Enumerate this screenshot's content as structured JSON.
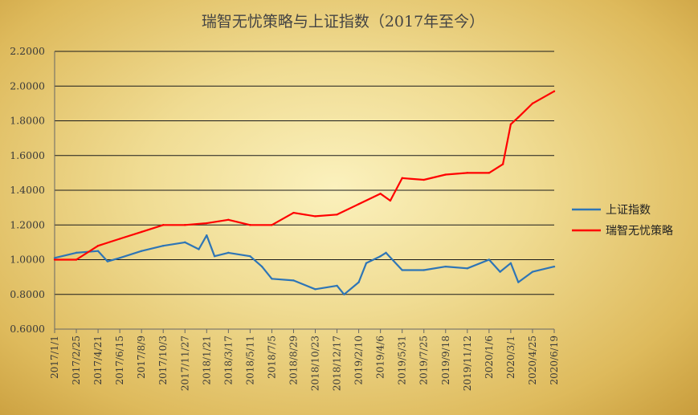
{
  "chart_data": {
    "type": "line",
    "title": "瑞智无忧策略与上证指数（2017年至今）",
    "xlabel": "",
    "ylabel": "",
    "ylim": [
      0.6,
      2.2
    ],
    "yticks": [
      "0.6000",
      "0.8000",
      "1.0000",
      "1.2000",
      "1.4000",
      "1.6000",
      "1.8000",
      "2.0000",
      "2.2000"
    ],
    "xticks": [
      "2017/1/1",
      "2017/2/25",
      "2017/4/21",
      "2017/6/15",
      "2017/8/9",
      "2017/10/3",
      "2017/11/27",
      "2018/1/21",
      "2018/3/17",
      "2018/5/11",
      "2018/7/5",
      "2018/8/29",
      "2018/10/23",
      "2018/12/17",
      "2019/2/10",
      "2019/4/6",
      "2019/5/31",
      "2019/7/25",
      "2019/9/18",
      "2019/11/12",
      "2020/1/6",
      "2020/3/1",
      "2020/4/25",
      "2020/6/19"
    ],
    "grid": true,
    "legend_position": "right",
    "series": [
      {
        "name": "上证指数",
        "color": "#2e75b6",
        "x": [
          "2017/1/1",
          "2017/2/25",
          "2017/4/21",
          "2017/5/15",
          "2017/6/15",
          "2017/8/9",
          "2017/10/3",
          "2017/11/27",
          "2018/1/1",
          "2018/1/21",
          "2018/2/10",
          "2018/3/17",
          "2018/5/11",
          "2018/6/10",
          "2018/7/5",
          "2018/8/29",
          "2018/10/23",
          "2018/12/17",
          "2019/1/4",
          "2019/2/10",
          "2019/3/1",
          "2019/4/6",
          "2019/4/20",
          "2019/5/31",
          "2019/7/25",
          "2019/9/18",
          "2019/11/12",
          "2020/1/6",
          "2020/2/3",
          "2020/3/1",
          "2020/3/20",
          "2020/4/25",
          "2020/6/19"
        ],
        "values": [
          1.01,
          1.04,
          1.05,
          0.99,
          1.01,
          1.05,
          1.08,
          1.1,
          1.06,
          1.14,
          1.02,
          1.04,
          1.02,
          0.96,
          0.89,
          0.88,
          0.83,
          0.85,
          0.8,
          0.87,
          0.98,
          1.02,
          1.04,
          0.94,
          0.94,
          0.96,
          0.95,
          1.0,
          0.93,
          0.98,
          0.87,
          0.93,
          0.96
        ]
      },
      {
        "name": "瑞智无忧策略",
        "color": "#ff0000",
        "x": [
          "2017/1/1",
          "2017/2/25",
          "2017/4/21",
          "2017/6/15",
          "2017/8/9",
          "2017/10/3",
          "2017/11/27",
          "2018/1/21",
          "2018/3/17",
          "2018/5/11",
          "2018/7/5",
          "2018/8/29",
          "2018/10/23",
          "2018/12/17",
          "2019/2/10",
          "2019/4/6",
          "2019/5/1",
          "2019/5/31",
          "2019/7/25",
          "2019/9/18",
          "2019/11/12",
          "2020/1/6",
          "2020/2/10",
          "2020/3/1",
          "2020/3/20",
          "2020/4/25",
          "2020/6/19"
        ],
        "values": [
          1.0,
          1.0,
          1.08,
          1.12,
          1.16,
          1.2,
          1.2,
          1.21,
          1.23,
          1.2,
          1.2,
          1.27,
          1.25,
          1.26,
          1.32,
          1.38,
          1.34,
          1.47,
          1.46,
          1.49,
          1.5,
          1.5,
          1.55,
          1.78,
          1.82,
          1.9,
          1.97
        ]
      }
    ]
  }
}
